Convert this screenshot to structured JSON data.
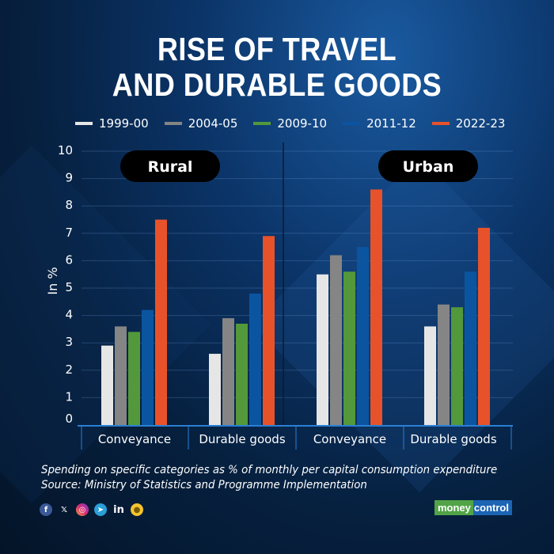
{
  "title_line1": "RISE OF TRAVEL",
  "title_line2": "AND DURABLE GOODS",
  "footnote": "Spending on specific categories as % of monthly per capital consumption expenditure",
  "source": "Source: Ministry of Statistics and Programme Implementation",
  "brand": {
    "part1": "money",
    "part2": "control"
  },
  "social_icons": [
    "facebook-icon",
    "x-icon",
    "instagram-icon",
    "telegram-icon",
    "linkedin-icon",
    "snapchat-icon"
  ],
  "chart_data": {
    "type": "bar",
    "title": "RISE OF TRAVEL AND DURABLE GOODS",
    "ylabel": "In %",
    "xlabel": "",
    "ylim": [
      0,
      10
    ],
    "yticks": [
      "0",
      "1",
      "2",
      "3",
      "4",
      "5",
      "6",
      "7",
      "8",
      "9",
      "10"
    ],
    "panels": [
      "Rural",
      "Urban"
    ],
    "categories": [
      "Conveyance",
      "Durable goods",
      "Conveyance",
      "Durable goods"
    ],
    "legend_position": "top",
    "grid": true,
    "series": [
      {
        "name": "1999-00",
        "color": "#e6e6e6",
        "values": [
          2.9,
          2.6,
          5.5,
          3.6
        ]
      },
      {
        "name": "2004-05",
        "color": "#858585",
        "values": [
          3.6,
          3.9,
          6.2,
          4.4
        ]
      },
      {
        "name": "2009-10",
        "color": "#53983a",
        "values": [
          3.4,
          3.7,
          5.6,
          4.3
        ]
      },
      {
        "name": "2011-12",
        "color": "#0b55a0",
        "values": [
          4.2,
          4.8,
          6.5,
          5.6
        ]
      },
      {
        "name": "2022-23",
        "color": "#e8522a",
        "values": [
          7.5,
          6.9,
          8.6,
          7.2
        ]
      }
    ]
  }
}
